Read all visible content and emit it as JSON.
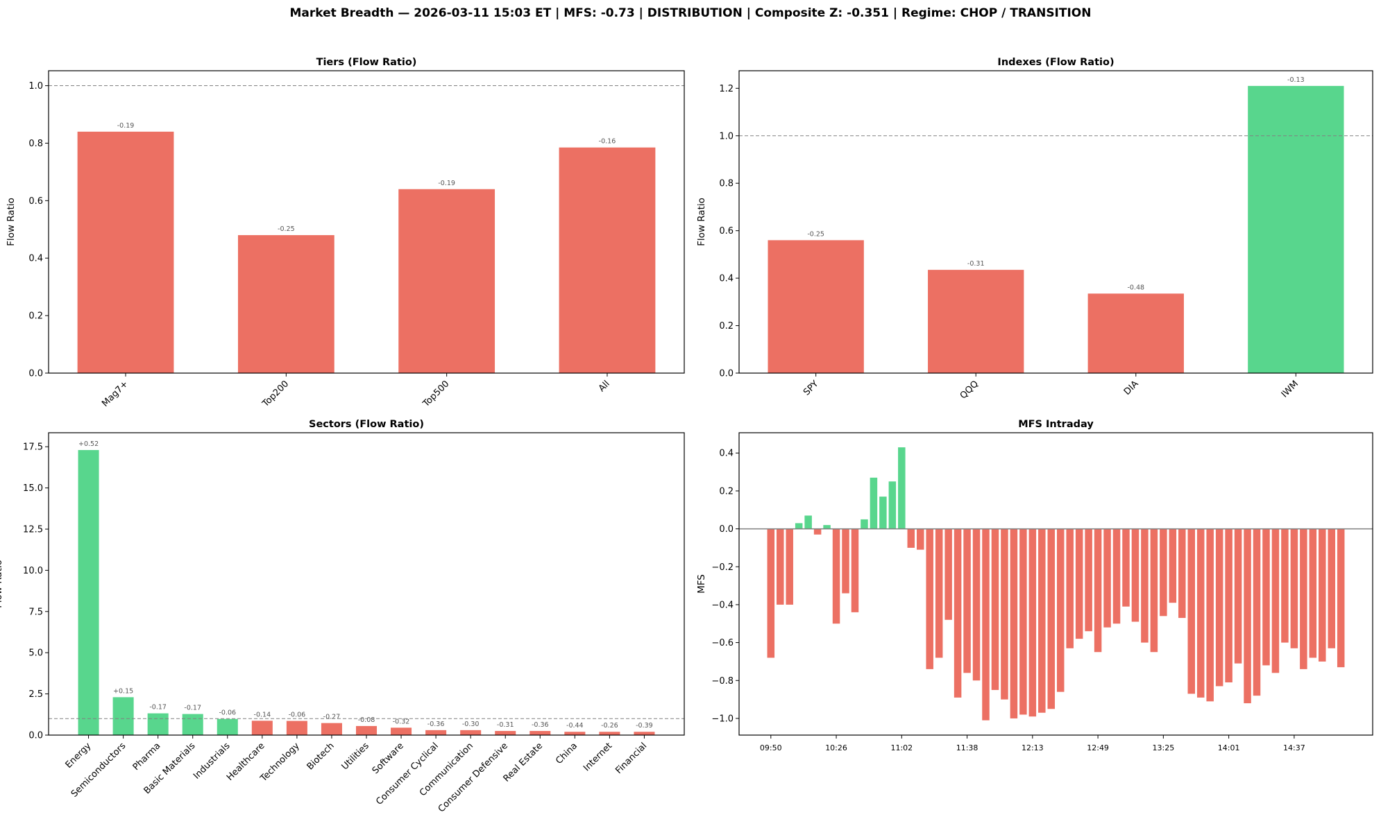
{
  "title": "Market Breadth — 2026-03-11 15:03 ET  |  MFS: -0.73  |  DISTRIBUTION  |  Composite Z: -0.351  |  Regime: CHOP / TRANSITION",
  "colors": {
    "positive": "#58d68d",
    "negative": "#ec7063",
    "reference_line": "#808080",
    "label": "#555555"
  },
  "chart_data": [
    {
      "id": "tiers",
      "type": "bar",
      "title": "Tiers (Flow Ratio)",
      "xlabel": "",
      "ylabel": "Flow Ratio",
      "categories": [
        "Mag7+",
        "Top200",
        "Top500",
        "All"
      ],
      "values": [
        0.84,
        0.48,
        0.64,
        0.785
      ],
      "bar_labels": [
        "-0.19",
        "-0.25",
        "-0.19",
        "-0.16"
      ],
      "bar_colors": [
        "negative",
        "negative",
        "negative",
        "negative"
      ],
      "ylim": [
        0,
        1.052
      ],
      "yticks": [
        0.0,
        0.2,
        0.4,
        0.6,
        0.8,
        1.0
      ],
      "ytick_labels": [
        "0.0",
        "0.2",
        "0.4",
        "0.6",
        "0.8",
        "1.0"
      ],
      "reference_line": 1.0,
      "grid": false
    },
    {
      "id": "indexes",
      "type": "bar",
      "title": "Indexes (Flow Ratio)",
      "xlabel": "",
      "ylabel": "Flow Ratio",
      "categories": [
        "SPY",
        "QQQ",
        "DIA",
        "IWM"
      ],
      "values": [
        0.56,
        0.435,
        0.335,
        1.21
      ],
      "bar_labels": [
        "-0.25",
        "-0.31",
        "-0.48",
        "-0.13"
      ],
      "bar_colors": [
        "negative",
        "negative",
        "negative",
        "positive"
      ],
      "ylim": [
        0,
        1.274
      ],
      "yticks": [
        0.0,
        0.2,
        0.4,
        0.6,
        0.8,
        1.0,
        1.2
      ],
      "ytick_labels": [
        "0.0",
        "0.2",
        "0.4",
        "0.6",
        "0.8",
        "1.0",
        "1.2"
      ],
      "reference_line": 1.0,
      "grid": false
    },
    {
      "id": "sectors",
      "type": "bar",
      "title": "Sectors (Flow Ratio)",
      "xlabel": "",
      "ylabel": "Flow Ratio",
      "categories": [
        "Energy",
        "Semiconductors",
        "Pharma",
        "Basic Materials",
        "Industrials",
        "Healthcare",
        "Technology",
        "Biotech",
        "Utilities",
        "Software",
        "Consumer Cyclical",
        "Communication",
        "Consumer Defensive",
        "Real Estate",
        "China",
        "Internet",
        "Financial"
      ],
      "values": [
        17.3,
        2.3,
        1.32,
        1.28,
        0.98,
        0.87,
        0.86,
        0.73,
        0.55,
        0.45,
        0.3,
        0.3,
        0.25,
        0.25,
        0.2,
        0.2,
        0.2
      ],
      "bar_labels": [
        "+0.52",
        "+0.15",
        "-0.17",
        "-0.17",
        "-0.06",
        "-0.14",
        "-0.06",
        "-0.27",
        "-0.08",
        "-0.32",
        "-0.36",
        "-0.30",
        "-0.31",
        "-0.36",
        "-0.44",
        "-0.26",
        "-0.39"
      ],
      "bar_colors": [
        "positive",
        "positive",
        "positive",
        "positive",
        "positive",
        "negative",
        "negative",
        "negative",
        "negative",
        "negative",
        "negative",
        "negative",
        "negative",
        "negative",
        "negative",
        "negative",
        "negative"
      ],
      "ylim": [
        0,
        18.35
      ],
      "yticks": [
        0,
        2.5,
        5,
        7.5,
        10,
        12.5,
        15,
        17.5
      ],
      "ytick_labels": [
        "0.0",
        "2.5",
        "5.0",
        "7.5",
        "10.0",
        "12.5",
        "15.0",
        "17.5"
      ],
      "reference_line": 1.0,
      "grid": false
    },
    {
      "id": "mfs",
      "type": "bar",
      "title": "MFS Intraday",
      "xlabel": "",
      "ylabel": "MFS",
      "values": [
        -0.68,
        -0.4,
        -0.4,
        0.03,
        0.07,
        -0.03,
        0.02,
        -0.5,
        -0.34,
        -0.44,
        0.05,
        0.27,
        0.17,
        0.25,
        0.43,
        -0.1,
        -0.11,
        -0.74,
        -0.68,
        -0.48,
        -0.89,
        -0.76,
        -0.8,
        -1.01,
        -0.85,
        -0.9,
        -1.0,
        -0.98,
        -0.99,
        -0.97,
        -0.95,
        -0.86,
        -0.63,
        -0.58,
        -0.54,
        -0.65,
        -0.52,
        -0.5,
        -0.41,
        -0.49,
        -0.6,
        -0.65,
        -0.46,
        -0.39,
        -0.47,
        -0.87,
        -0.89,
        -0.91,
        -0.83,
        -0.81,
        -0.71,
        -0.92,
        -0.88,
        -0.72,
        -0.76,
        -0.6,
        -0.63,
        -0.74,
        -0.68,
        -0.7,
        -0.63,
        -0.73
      ],
      "xticks": [
        {
          "index": 0,
          "label": "09:50"
        },
        {
          "index": 7,
          "label": "10:26"
        },
        {
          "index": 14,
          "label": "11:02"
        },
        {
          "index": 21,
          "label": "11:38"
        },
        {
          "index": 28,
          "label": "12:13"
        },
        {
          "index": 35,
          "label": "12:49"
        },
        {
          "index": 42,
          "label": "13:25"
        },
        {
          "index": 49,
          "label": "14:01"
        },
        {
          "index": 56,
          "label": "14:37"
        }
      ],
      "ylim": [
        -1.088,
        0.507
      ],
      "yticks": [
        -1.0,
        -0.8,
        -0.6,
        -0.4,
        -0.2,
        0.0,
        0.2,
        0.4
      ],
      "ytick_labels": [
        "−1.0",
        "−0.8",
        "−0.6",
        "−0.4",
        "−0.2",
        "0.0",
        "0.2",
        "0.4"
      ],
      "reference_line": 0.0,
      "grid": false
    }
  ]
}
